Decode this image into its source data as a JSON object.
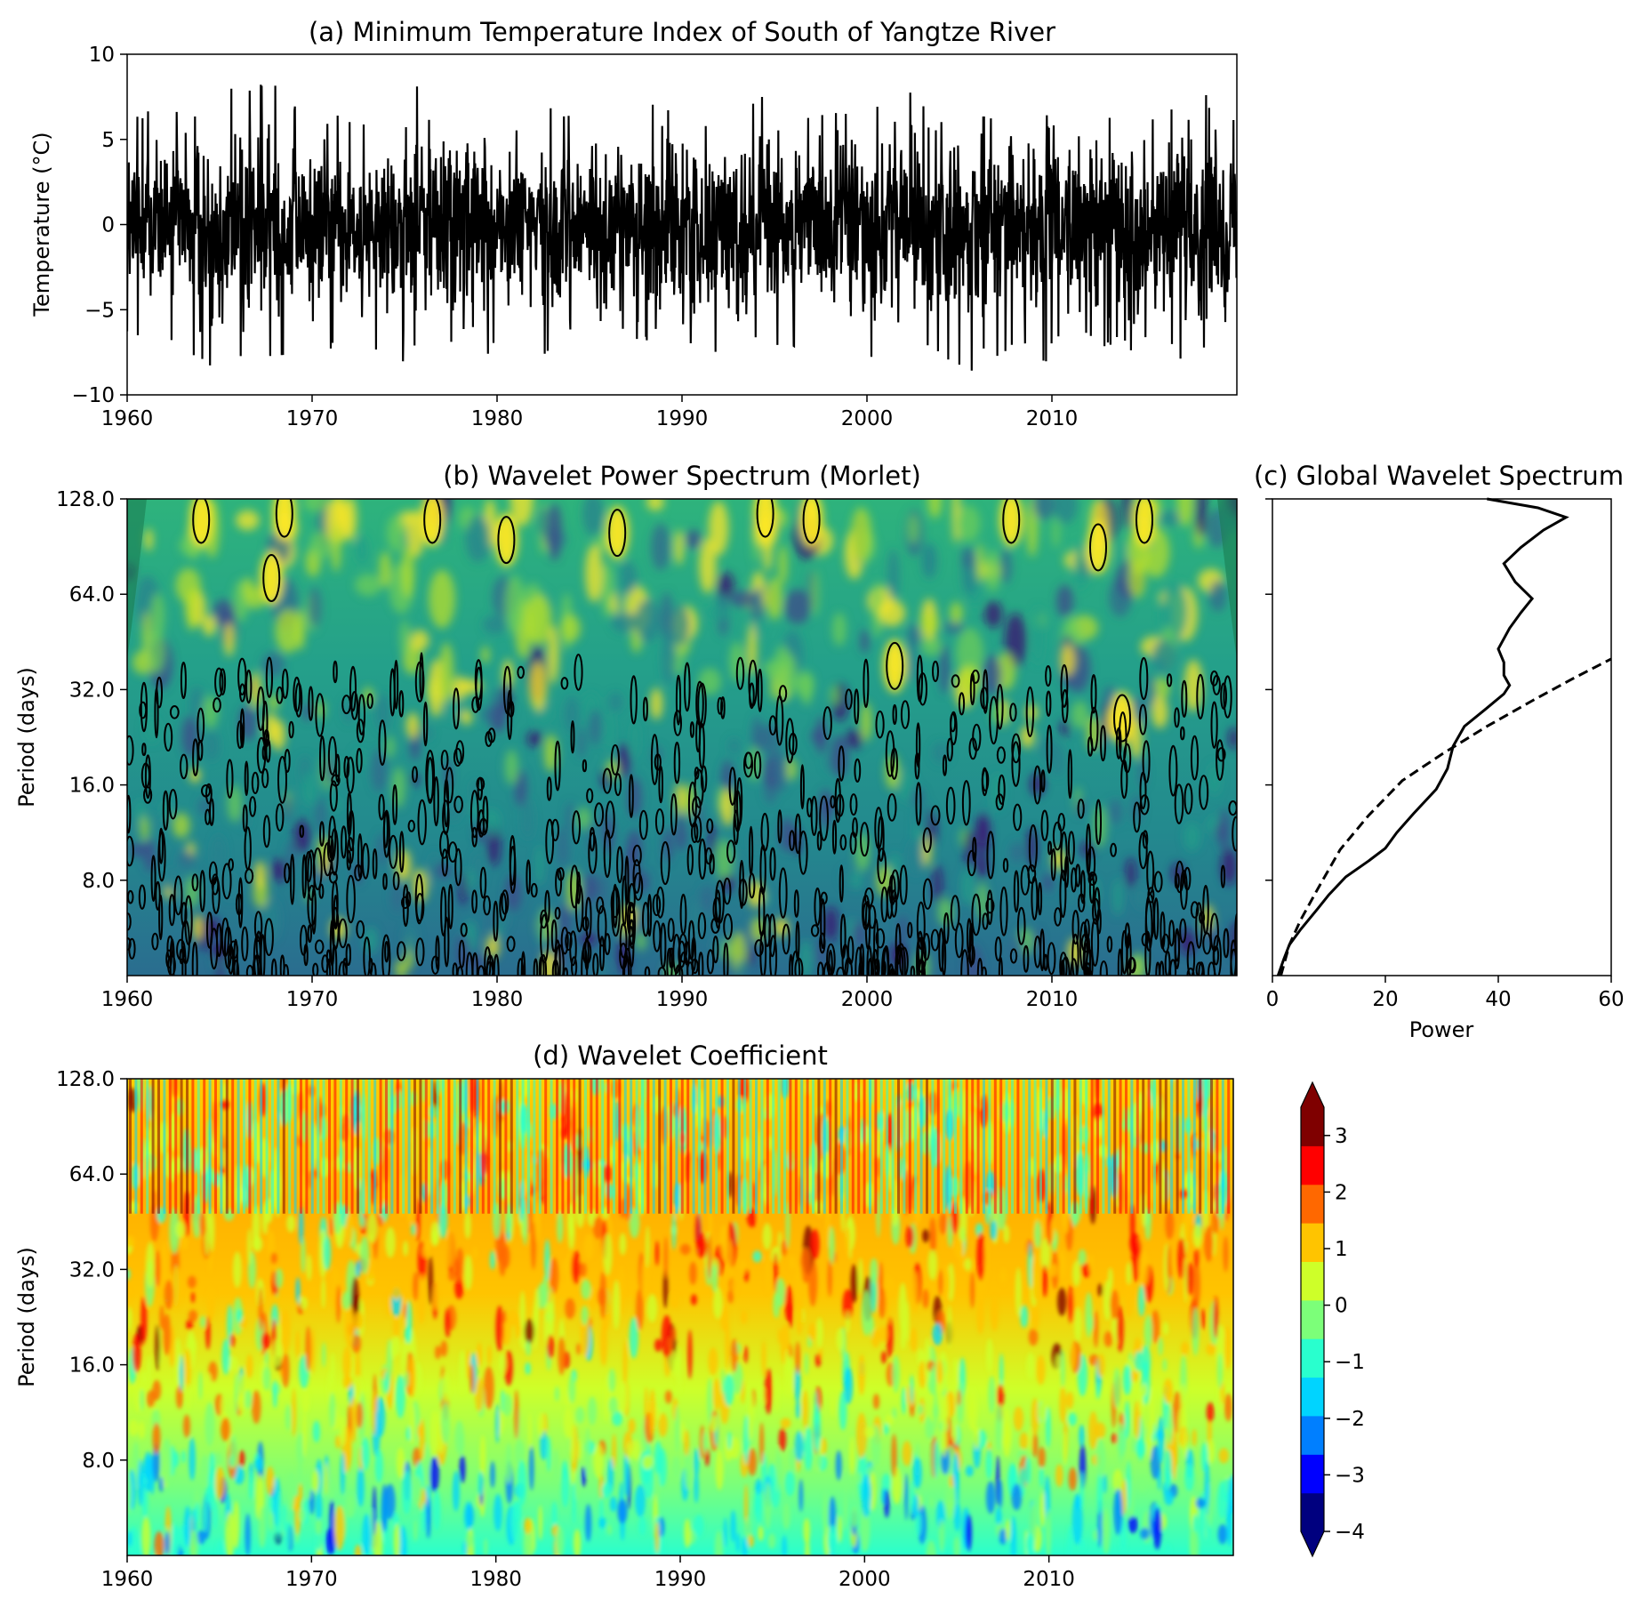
{
  "chart_data": [
    {
      "panel": "a",
      "type": "line",
      "title": "(a) Minimum Temperature Index of South of Yangtze River",
      "ylabel": "Temperature (°C)",
      "xlabel": "",
      "xlim": [
        1960,
        2020
      ],
      "ylim": [
        -10,
        10
      ],
      "xticks": [
        "1960",
        "1970",
        "1980",
        "1990",
        "2000",
        "2010"
      ],
      "yticks": [
        "10",
        "5",
        "0",
        "−5",
        "−10"
      ],
      "series": [
        {
          "color": "#000000",
          "envelope_x": [
            1960,
            1962,
            1964,
            1966,
            1968,
            1970,
            1972,
            1974,
            1976,
            1978,
            1980,
            1982,
            1984,
            1986,
            1988,
            1990,
            1992,
            1994,
            1996,
            1998,
            2000,
            2002,
            2004,
            2006,
            2008,
            2010,
            2012,
            2014,
            2016,
            2018,
            2020
          ],
          "envelope_max": [
            6.2,
            7.3,
            6.4,
            8.4,
            8.6,
            6.3,
            6.5,
            6.2,
            9.3,
            7.9,
            6.3,
            7.1,
            6.6,
            6.0,
            7.5,
            7.1,
            6.5,
            7.7,
            6.7,
            6.6,
            6.9,
            8.7,
            6.5,
            6.6,
            7.0,
            7.3,
            6.6,
            6.5,
            6.6,
            8.3,
            6.0
          ],
          "envelope_min": [
            -6.8,
            -7.0,
            -8.5,
            -8.2,
            -8.4,
            -7.4,
            -7.3,
            -7.6,
            -8.9,
            -9.2,
            -7.2,
            -7.9,
            -7.0,
            -7.3,
            -7.1,
            -8.9,
            -7.5,
            -7.0,
            -7.6,
            -7.7,
            -8.2,
            -7.4,
            -7.8,
            -8.8,
            -7.2,
            -8.4,
            -7.0,
            -7.6,
            -8.7,
            -7.5,
            -5.5
          ]
        }
      ]
    },
    {
      "panel": "b",
      "type": "heatmap",
      "title": "(b) Wavelet Power Spectrum (Morlet)",
      "ylabel": "Period (days)",
      "xlabel": "",
      "xlim": [
        1960,
        2020
      ],
      "ylim": [
        4,
        128
      ],
      "yscale": "log2",
      "xticks": [
        "1960",
        "1970",
        "1980",
        "1990",
        "2000",
        "2010"
      ],
      "yticks": [
        "128.0",
        "64.0",
        "32.0",
        "16.0",
        "8.0"
      ],
      "yticks_values": [
        128,
        64,
        32,
        16,
        8
      ],
      "colormap": [
        "#3b0f70",
        "#3e4989",
        "#31688e",
        "#26828e",
        "#1f9e89",
        "#35b779",
        "#6ece58",
        "#b5de2b",
        "#fde725"
      ],
      "significance_contours": true,
      "cone_of_influence": true,
      "high_power_regions": [
        {
          "x": 1964.0,
          "period": 110
        },
        {
          "x": 1968.5,
          "period": 115
        },
        {
          "x": 1967.8,
          "period": 72
        },
        {
          "x": 1976.5,
          "period": 110
        },
        {
          "x": 1980.5,
          "period": 95
        },
        {
          "x": 1986.5,
          "period": 100
        },
        {
          "x": 1994.5,
          "period": 115
        },
        {
          "x": 1997.0,
          "period": 110
        },
        {
          "x": 2001.5,
          "period": 38
        },
        {
          "x": 2007.8,
          "period": 110
        },
        {
          "x": 2012.5,
          "period": 90
        },
        {
          "x": 2015.0,
          "period": 110
        },
        {
          "x": 2013.8,
          "period": 26
        }
      ]
    },
    {
      "panel": "c",
      "type": "line",
      "title": "(c) Global Wavelet Spectrum",
      "xlabel": "Power",
      "ylabel": "",
      "xlim": [
        0,
        60
      ],
      "ylim": [
        4,
        128
      ],
      "yscale": "log2",
      "xticks": [
        "0",
        "20",
        "40",
        "60"
      ],
      "series": [
        {
          "style": "solid",
          "color": "#000000",
          "x": [
            1,
            2,
            3,
            5,
            8,
            10,
            13,
            17,
            20,
            22,
            25,
            29,
            31,
            32,
            34,
            38,
            41,
            42,
            41,
            41,
            40,
            42,
            44,
            46,
            43,
            41,
            44,
            48,
            52,
            47,
            38
          ],
          "y": [
            4,
            4.5,
            5,
            5.6,
            6.5,
            7.2,
            8.2,
            9.2,
            10.1,
            11.3,
            13,
            15.5,
            18,
            21.2,
            24.5,
            28,
            31,
            33,
            35.5,
            39,
            43,
            50,
            56,
            62,
            70,
            80,
            90,
            102,
            112,
            120,
            128
          ]
        },
        {
          "style": "dashed",
          "color": "#000000",
          "x": [
            1.5,
            3,
            5,
            8,
            12,
            17,
            23,
            30,
            38,
            46,
            53,
            60
          ],
          "y": [
            4,
            5,
            6,
            7.5,
            10,
            12.8,
            16.5,
            20,
            24.5,
            29.5,
            34.5,
            40
          ]
        }
      ]
    },
    {
      "panel": "d",
      "type": "heatmap",
      "title": "(d) Wavelet Coefficient",
      "ylabel": "Period (days)",
      "xlabel": "",
      "xlim": [
        1960,
        2020
      ],
      "ylim": [
        4,
        128
      ],
      "yscale": "log2",
      "xticks": [
        "1960",
        "1970",
        "1980",
        "1990",
        "2000",
        "2010"
      ],
      "yticks": [
        "128.0",
        "64.0",
        "32.0",
        "16.0",
        "8.0"
      ],
      "yticks_values": [
        128,
        64,
        32,
        16,
        8
      ],
      "colormap": [
        "#00007f",
        "#0000ff",
        "#007fff",
        "#00d4ff",
        "#29ffce",
        "#7cff79",
        "#ceff29",
        "#ffc400",
        "#ff6800",
        "#ff0000",
        "#7f0000"
      ],
      "colorbar": {
        "min": -4,
        "max": 3.5,
        "ticks": [
          "3",
          "2",
          "1",
          "0",
          "−1",
          "−2",
          "−3",
          "−4"
        ],
        "tick_values": [
          3,
          2,
          1,
          0,
          -1,
          -2,
          -3,
          -4
        ],
        "extend": "both"
      }
    }
  ]
}
